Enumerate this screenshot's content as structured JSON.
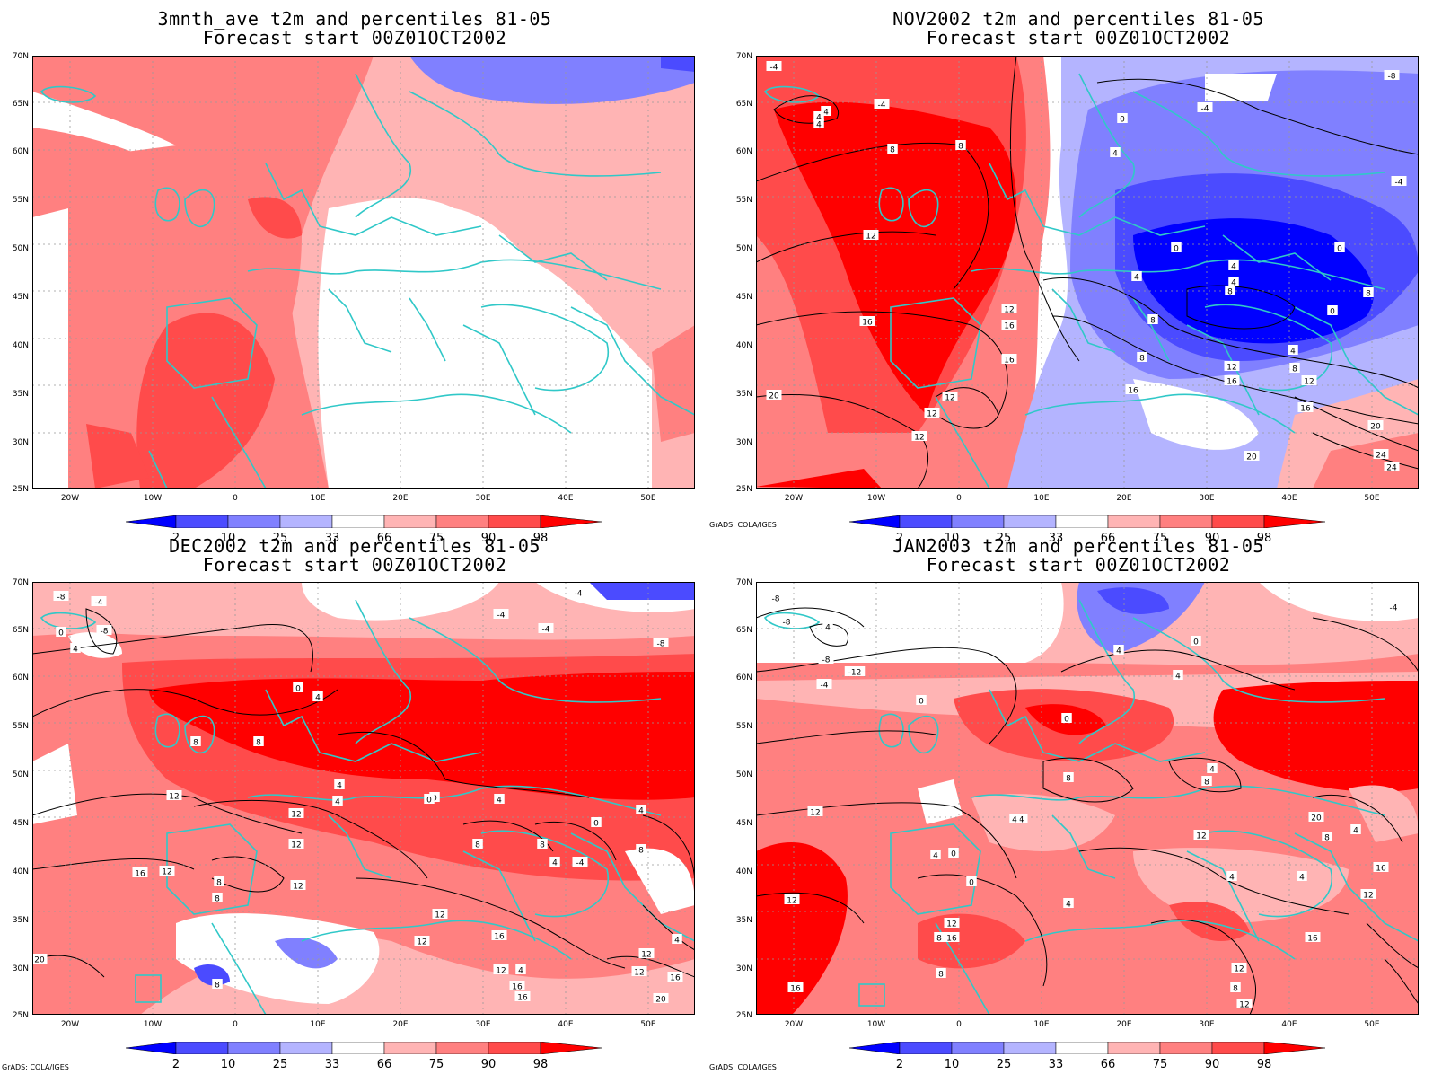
{
  "credit": "GrADS: COLA/IGES",
  "latitude_labels": [
    "70N",
    "65N",
    "60N",
    "55N",
    "50N",
    "45N",
    "40N",
    "35N",
    "30N",
    "25N"
  ],
  "longitude_labels": [
    "20W",
    "10W",
    "0",
    "10E",
    "20E",
    "30E",
    "40E",
    "50E"
  ],
  "colorbar": {
    "labels": [
      "2",
      "10",
      "25",
      "33",
      "66",
      "75",
      "90",
      "98"
    ],
    "colors": [
      "#0000ff",
      "#4b4bff",
      "#8080ff",
      "#b4b4ff",
      "#ffffff",
      "#ffb4b4",
      "#ff8080",
      "#ff4b4b",
      "#ff0000"
    ]
  },
  "panels": [
    {
      "title1": "3mnth_ave t2m and percentiles 81-05",
      "title2": "Forecast start 00Z01OCT2002",
      "contours": []
    },
    {
      "title1": "NOV2002 t2m and percentiles 81-05",
      "title2": "Forecast start 00Z01OCT2002",
      "contours": [
        "-4",
        "4",
        "-4",
        "4",
        "4",
        "8",
        "8",
        "0",
        "4",
        "-4",
        "-8",
        "-4",
        "12",
        "0",
        "4",
        "4",
        "0",
        "4",
        "8",
        "8",
        "16",
        "8",
        "12",
        "16",
        "0",
        "16",
        "8",
        "12",
        "4",
        "8",
        "12",
        "16",
        "20",
        "12",
        "12",
        "16",
        "12",
        "16",
        "20",
        "20",
        "24",
        "24"
      ]
    },
    {
      "title1": "DEC2002 t2m and percentiles 81-05",
      "title2": "Forecast start 00Z01OCT2002",
      "contours": [
        "-8",
        "-4",
        "-8",
        "4",
        "0",
        "-4",
        "-4",
        "-8",
        "-4",
        "0",
        "4",
        "8",
        "8",
        "4",
        "0",
        "0",
        "4",
        "0",
        "4",
        "12",
        "12",
        "4",
        "12",
        "8",
        "8",
        "4",
        "12",
        "8",
        "16",
        "-4",
        "8",
        "8",
        "12",
        "12",
        "12",
        "4",
        "16",
        "20",
        "8",
        "12",
        "12",
        "12",
        "16",
        "16",
        "16",
        "4",
        "20"
      ]
    },
    {
      "title1": "JAN2003 t2m and percentiles 81-05",
      "title2": "Forecast start 00Z01OCT2002",
      "contours": [
        "-8",
        "-8",
        "-4",
        "4",
        "-12",
        "-4",
        "-8",
        "0",
        "4",
        "4",
        "0",
        "0",
        "8",
        "8",
        "0",
        "4",
        "12",
        "4",
        "12",
        "8",
        "-4",
        "4",
        "4",
        "4",
        "4",
        "12",
        "16",
        "8",
        "12",
        "4",
        "0",
        "8",
        "8",
        "12",
        "12",
        "16",
        "16",
        "20",
        "12",
        "16"
      ]
    }
  ]
}
